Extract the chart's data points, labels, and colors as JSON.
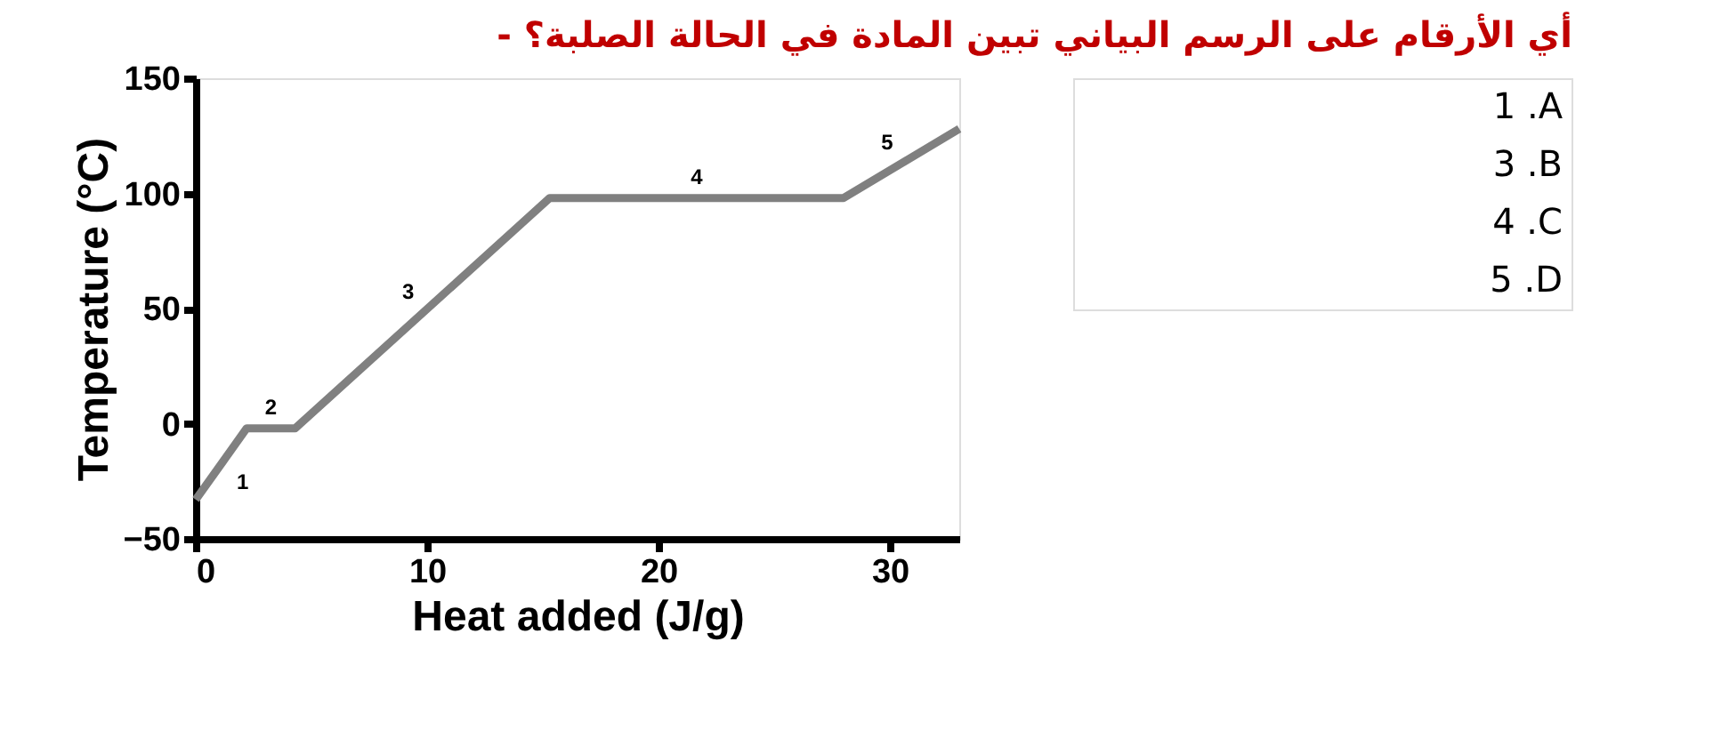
{
  "chart_data": {
    "type": "line",
    "title": "- أي الأرقام على الرسم البياني تبين المادة في الحالة الصلبة؟",
    "xlabel": "Heat added (J/g)",
    "ylabel": "Temperature (°C)",
    "x": [
      0,
      2.2,
      4.3,
      15.3,
      28,
      33
    ],
    "series": [
      {
        "color": "#808080",
        "values": [
          -33,
          -2,
          -2,
          98,
          98,
          128
        ]
      }
    ],
    "xlim": [
      0,
      33
    ],
    "xticks": [
      0,
      10,
      20,
      30
    ],
    "ylim": [
      -50,
      150
    ],
    "yticks": [
      -50,
      0,
      50,
      100,
      150
    ],
    "grid": false,
    "marker": "none",
    "line_style": "solid",
    "annotations": [
      "1",
      "2",
      "3",
      "4",
      "5",
      "1 .A",
      "3 .B",
      "4 .C",
      "5 .D"
    ]
  }
}
